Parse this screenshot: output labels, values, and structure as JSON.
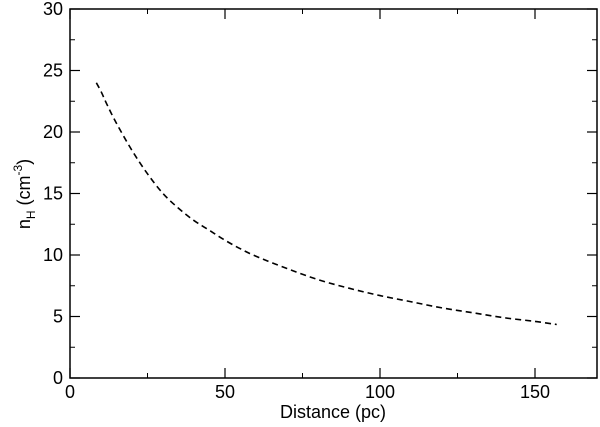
{
  "chart_data": {
    "type": "line",
    "xlabel": "Distance (pc)",
    "ylabel": {
      "base": "n",
      "subscript": "H",
      "unit_open": " (cm",
      "superscript": "-3",
      "unit_close": ")"
    },
    "xlim": [
      0,
      170
    ],
    "ylim": [
      0,
      30
    ],
    "x_ticks": [
      "0",
      "50",
      "100",
      "150"
    ],
    "y_ticks": [
      "0",
      "5",
      "10",
      "15",
      "20",
      "25",
      "30"
    ],
    "grid": false,
    "series": [
      {
        "line_style": "dashed",
        "color": "#000000",
        "x": [
          8.5,
          10,
          12,
          15,
          20,
          25,
          30,
          35,
          40,
          45,
          50,
          55,
          60,
          70,
          80,
          90,
          100,
          110,
          120,
          130,
          140,
          150,
          157
        ],
        "y": [
          24.0,
          23.3,
          22.2,
          20.7,
          18.5,
          16.6,
          15.0,
          13.8,
          12.8,
          12.0,
          11.2,
          10.5,
          9.9,
          8.9,
          8.0,
          7.3,
          6.7,
          6.2,
          5.7,
          5.3,
          4.9,
          4.6,
          4.35
        ]
      }
    ]
  }
}
